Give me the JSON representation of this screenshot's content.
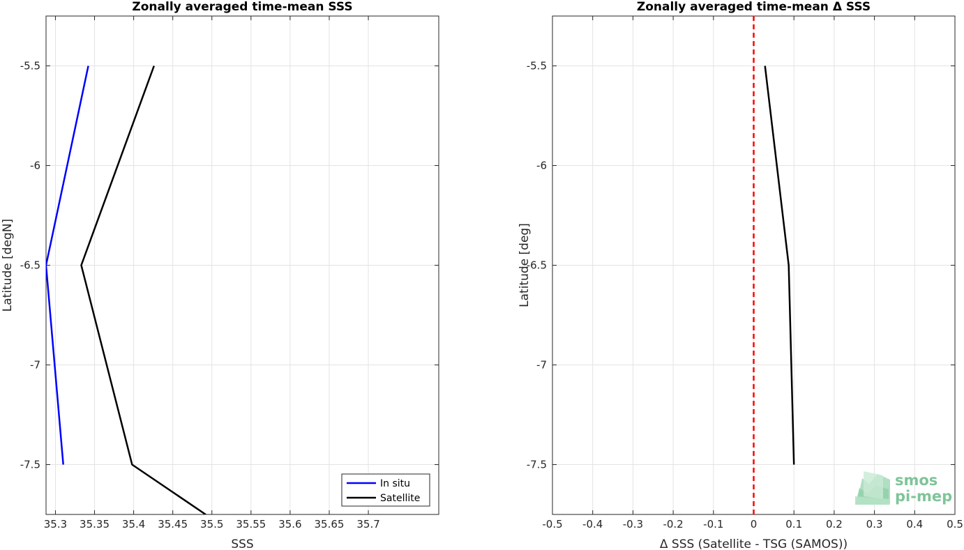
{
  "chart_data": [
    {
      "type": "line",
      "title": "Zonally averaged time-mean SSS",
      "xlabel": "SSS",
      "ylabel": "Latitude [degN]",
      "xlim": [
        35.288,
        35.79
      ],
      "ylim": [
        -7.75,
        -5.25
      ],
      "x_ticks": [
        35.3,
        35.35,
        35.4,
        35.45,
        35.5,
        35.55,
        35.6,
        35.65,
        35.7
      ],
      "x_tick_labels": [
        "35.3",
        "35.35",
        "35.4",
        "35.45",
        "35.5",
        "35.55",
        "35.6",
        "35.65",
        "35.7"
      ],
      "y_ticks": [
        -5.5,
        -6,
        -6.5,
        -7,
        -7.5
      ],
      "y_tick_labels": [
        "-5.5",
        "-6",
        "-6.5",
        "-7",
        "-7.5"
      ],
      "grid": true,
      "legend_position": "bottom-right",
      "series": [
        {
          "name": "In situ",
          "color": "#0000ff",
          "x": [
            35.342,
            35.288,
            35.31
          ],
          "y": [
            -5.5,
            -6.5,
            -7.5
          ]
        },
        {
          "name": "Satellite",
          "color": "#000000",
          "x": [
            35.426,
            35.333,
            35.398,
            35.492
          ],
          "y": [
            -5.5,
            -6.5,
            -7.5,
            -7.75
          ]
        }
      ]
    },
    {
      "type": "line",
      "title": "Zonally averaged time-mean Δ SSS",
      "xlabel": "Δ SSS (Satellite - TSG (SAMOS))",
      "ylabel": "Latitude [deg]",
      "xlim": [
        -0.5,
        0.5
      ],
      "ylim": [
        -7.75,
        -5.25
      ],
      "x_ticks": [
        -0.5,
        -0.4,
        -0.3,
        -0.2,
        -0.1,
        0,
        0.1,
        0.2,
        0.3,
        0.4,
        0.5
      ],
      "x_tick_labels": [
        "-0.5",
        "-0.4",
        "-0.3",
        "-0.2",
        "-0.1",
        "0",
        "0.1",
        "0.2",
        "0.3",
        "0.4",
        "0.5"
      ],
      "y_ticks": [
        -5.5,
        -6,
        -6.5,
        -7,
        -7.5
      ],
      "y_tick_labels": [
        "-5.5",
        "-6",
        "-6.5",
        "-7",
        "-7.5"
      ],
      "grid": true,
      "reference_line": {
        "x": 0,
        "color": "#ff0000",
        "style": "dashed"
      },
      "series": [
        {
          "color": "#000000",
          "x": [
            0.028,
            0.087,
            0.1
          ],
          "y": [
            -5.5,
            -6.5,
            -7.5
          ]
        }
      ]
    }
  ],
  "logo": {
    "text_line1": "smos",
    "text_line2": "pi-mep",
    "color": "#7fc49a"
  }
}
